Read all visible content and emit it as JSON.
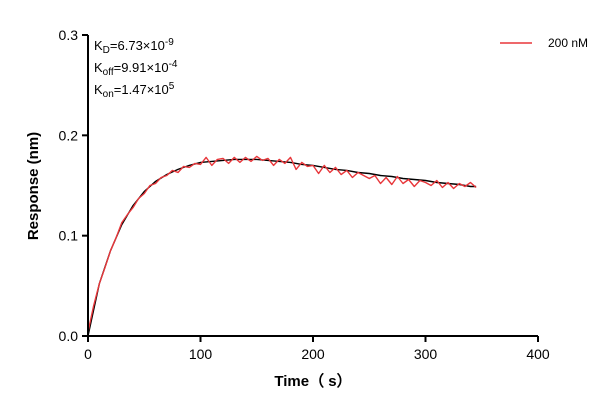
{
  "chart_data": {
    "type": "line",
    "xlabel": "Time（ s）",
    "ylabel": "Response (nm)",
    "xlim": [
      0,
      400
    ],
    "ylim": [
      0,
      0.3
    ],
    "x_ticks": [
      "0",
      "100",
      "200",
      "300",
      "400"
    ],
    "y_ticks": [
      "0.0",
      "0.1",
      "0.2",
      "0.3"
    ],
    "x_tick_values": [
      0,
      100,
      200,
      300,
      400
    ],
    "y_tick_values": [
      0,
      0.1,
      0.2,
      0.3
    ],
    "grid": false,
    "legend_position": "top-right",
    "annotations": {
      "kd": {
        "base": "K",
        "sub": "D",
        "text": "=6.73×10",
        "sup": "-9"
      },
      "koff": {
        "base": "K",
        "sub": "off",
        "text": "=9.91×10",
        "sup": "-4"
      },
      "kon": {
        "base": "K",
        "sub": "on",
        "text": "=1.47×10",
        "sup": "5"
      }
    },
    "series": [
      {
        "name": "200 nM",
        "color": "#e8363a",
        "x": [
          0,
          5,
          10,
          15,
          20,
          25,
          30,
          35,
          40,
          45,
          50,
          55,
          60,
          65,
          70,
          75,
          80,
          85,
          90,
          95,
          100,
          105,
          110,
          115,
          120,
          125,
          130,
          135,
          140,
          145,
          150,
          155,
          160,
          165,
          170,
          175,
          180,
          185,
          190,
          195,
          200,
          205,
          210,
          215,
          220,
          225,
          230,
          235,
          240,
          245,
          250,
          255,
          260,
          265,
          270,
          275,
          280,
          285,
          290,
          295,
          300,
          305,
          310,
          315,
          320,
          325,
          330,
          335,
          340,
          345
        ],
        "y": [
          0.004,
          0.03,
          0.052,
          0.068,
          0.085,
          0.098,
          0.113,
          0.121,
          0.128,
          0.137,
          0.142,
          0.15,
          0.152,
          0.158,
          0.16,
          0.165,
          0.163,
          0.169,
          0.168,
          0.172,
          0.171,
          0.178,
          0.17,
          0.176,
          0.177,
          0.172,
          0.178,
          0.173,
          0.178,
          0.174,
          0.179,
          0.175,
          0.177,
          0.17,
          0.176,
          0.172,
          0.178,
          0.166,
          0.173,
          0.169,
          0.17,
          0.162,
          0.17,
          0.163,
          0.168,
          0.161,
          0.165,
          0.158,
          0.163,
          0.16,
          0.157,
          0.16,
          0.152,
          0.158,
          0.151,
          0.159,
          0.152,
          0.156,
          0.149,
          0.155,
          0.153,
          0.15,
          0.155,
          0.148,
          0.153,
          0.147,
          0.152,
          0.149,
          0.153,
          0.148
        ]
      }
    ],
    "fit": {
      "color": "#000000",
      "x": [
        0,
        10,
        20,
        30,
        40,
        50,
        60,
        70,
        80,
        90,
        100,
        110,
        120,
        130,
        140,
        150,
        160,
        170,
        180,
        190,
        200,
        210,
        220,
        230,
        240,
        250,
        260,
        270,
        280,
        290,
        300,
        310,
        320,
        330,
        340,
        345
      ],
      "y": [
        0.0,
        0.052,
        0.085,
        0.111,
        0.13,
        0.144,
        0.154,
        0.161,
        0.166,
        0.17,
        0.173,
        0.174,
        0.175,
        0.176,
        0.176,
        0.176,
        0.175,
        0.174,
        0.173,
        0.171,
        0.17,
        0.168,
        0.166,
        0.165,
        0.163,
        0.162,
        0.16,
        0.159,
        0.157,
        0.156,
        0.155,
        0.153,
        0.152,
        0.151,
        0.149,
        0.149
      ]
    }
  }
}
